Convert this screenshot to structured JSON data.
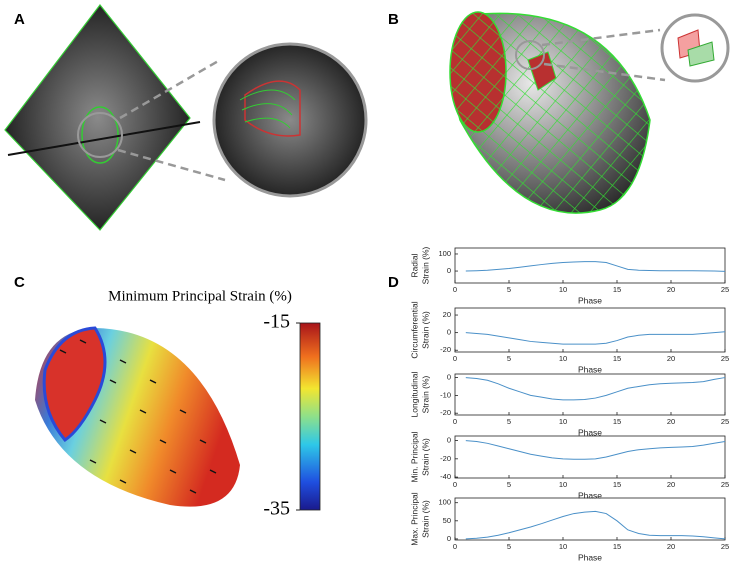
{
  "panels": {
    "a": "A",
    "b": "B",
    "c": "C",
    "d": "D"
  },
  "colorbar": {
    "title": "Minimum Principal Strain (%)",
    "lim": [
      -35,
      -15
    ],
    "ticks": [
      -15,
      -35
    ]
  },
  "chart_data": [
    {
      "type": "line",
      "ylabel": [
        "Radial",
        "Strain (%)"
      ],
      "xlabel": "Phase",
      "color": "#4a90c8",
      "x": [
        1,
        2,
        3,
        4,
        5,
        6,
        7,
        8,
        9,
        10,
        11,
        12,
        13,
        14,
        15,
        16,
        17,
        18,
        19,
        20,
        21,
        22,
        23,
        24,
        25
      ],
      "values": [
        0,
        2,
        5,
        10,
        15,
        22,
        30,
        38,
        45,
        50,
        53,
        55,
        55,
        50,
        30,
        10,
        5,
        3,
        2,
        2,
        2,
        2,
        1,
        0,
        -2
      ],
      "xlim": [
        0,
        25
      ],
      "ylim": [
        -70,
        135
      ],
      "xticks": [
        0,
        5,
        10,
        15,
        20,
        25
      ],
      "yticks": [
        0,
        100
      ]
    },
    {
      "type": "line",
      "ylabel": [
        "Circumferential",
        "Strain (%)"
      ],
      "xlabel": "Phase",
      "color": "#4a90c8",
      "x": [
        1,
        2,
        3,
        4,
        5,
        6,
        7,
        8,
        9,
        10,
        11,
        12,
        13,
        14,
        15,
        16,
        17,
        18,
        19,
        20,
        21,
        22,
        23,
        24,
        25
      ],
      "values": [
        0,
        -1,
        -2,
        -4,
        -6,
        -8,
        -10,
        -11,
        -12,
        -13,
        -13,
        -13,
        -13,
        -12,
        -9,
        -5,
        -3,
        -2,
        -2,
        -2,
        -2,
        -2,
        -1,
        0,
        1
      ],
      "xlim": [
        0,
        25
      ],
      "ylim": [
        -22,
        28
      ],
      "xticks": [
        0,
        5,
        10,
        15,
        20,
        25
      ],
      "yticks": [
        -20,
        0,
        20
      ]
    },
    {
      "type": "line",
      "ylabel": [
        "Longitudinal",
        "Strain (%)"
      ],
      "xlabel": "Phase",
      "color": "#4a90c8",
      "x": [
        1,
        2,
        3,
        4,
        5,
        6,
        7,
        8,
        9,
        10,
        11,
        12,
        13,
        14,
        15,
        16,
        17,
        18,
        19,
        20,
        21,
        22,
        23,
        24,
        25
      ],
      "values": [
        0,
        -0.5,
        -1.5,
        -3.5,
        -6,
        -8,
        -10,
        -11,
        -12,
        -12.5,
        -12.5,
        -12.3,
        -11.5,
        -10,
        -8,
        -6,
        -5,
        -4,
        -3.5,
        -3.2,
        -3,
        -2.8,
        -2.3,
        -1,
        0
      ],
      "xlim": [
        0,
        25
      ],
      "ylim": [
        -21,
        2
      ],
      "xticks": [
        0,
        5,
        10,
        15,
        20,
        25
      ],
      "yticks": [
        -20,
        -10,
        0
      ]
    },
    {
      "type": "line",
      "ylabel": [
        "Min. Principal",
        "Strain (%)"
      ],
      "xlabel": "Phase",
      "color": "#4a90c8",
      "x": [
        1,
        2,
        3,
        4,
        5,
        6,
        7,
        8,
        9,
        10,
        11,
        12,
        13,
        14,
        15,
        16,
        17,
        18,
        19,
        20,
        21,
        22,
        23,
        24,
        25
      ],
      "values": [
        0,
        -1,
        -3,
        -6,
        -9,
        -12,
        -15,
        -17,
        -19,
        -20,
        -20.5,
        -20.5,
        -20,
        -18,
        -15,
        -12,
        -10,
        -9,
        -8,
        -7.5,
        -7,
        -6.5,
        -5,
        -3,
        -1
      ],
      "xlim": [
        0,
        25
      ],
      "ylim": [
        -41,
        5
      ],
      "xticks": [
        0,
        5,
        10,
        15,
        20,
        25
      ],
      "yticks": [
        -40,
        -20,
        0
      ]
    },
    {
      "type": "line",
      "ylabel": [
        "Max. Principal",
        "Strain (%)"
      ],
      "xlabel": "Phase",
      "color": "#4a90c8",
      "x": [
        1,
        2,
        3,
        4,
        5,
        6,
        7,
        8,
        9,
        10,
        11,
        12,
        13,
        14,
        15,
        16,
        17,
        18,
        19,
        20,
        21,
        22,
        23,
        24,
        25
      ],
      "values": [
        0,
        2,
        5,
        10,
        17,
        25,
        33,
        42,
        52,
        62,
        70,
        74,
        76,
        70,
        50,
        25,
        15,
        10,
        9,
        9,
        9,
        8,
        6,
        3,
        0
      ],
      "xlim": [
        0,
        25
      ],
      "ylim": [
        -3,
        113
      ],
      "xticks": [
        0,
        5,
        10,
        15,
        20,
        25
      ],
      "yticks": [
        0,
        50,
        100
      ]
    }
  ]
}
